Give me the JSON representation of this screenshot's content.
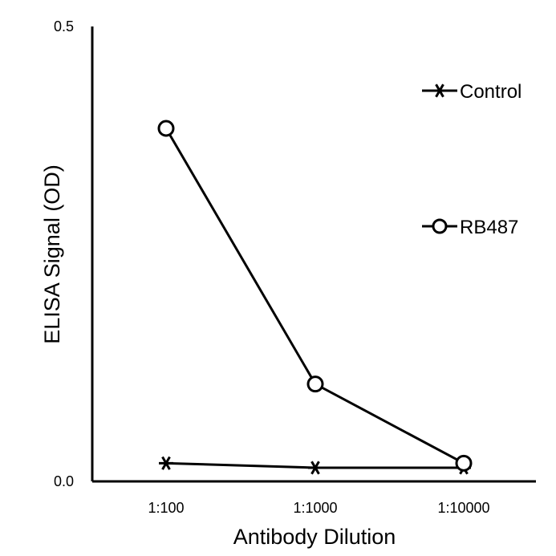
{
  "chart_data": {
    "type": "line",
    "title": "",
    "xlabel": "Antibody Dilution",
    "ylabel": "ELISA Signal (OD)",
    "categories": [
      "1:100",
      "1:1000",
      "1:10000"
    ],
    "ylim": [
      0,
      0.5
    ],
    "y_ticks": [
      {
        "value": 0,
        "label": "0.0"
      },
      {
        "value": 0.5,
        "label": "0.5"
      }
    ],
    "grid": false,
    "legend_position": "right",
    "series": [
      {
        "name": "Control",
        "marker": "asterisk",
        "values": [
          0.02,
          0.015,
          0.015
        ]
      },
      {
        "name": "RB487",
        "marker": "open-circle",
        "values": [
          0.388,
          0.107,
          0.02
        ]
      }
    ],
    "colors": {
      "line": "#000000",
      "marker_fill": "#ffffff"
    }
  }
}
